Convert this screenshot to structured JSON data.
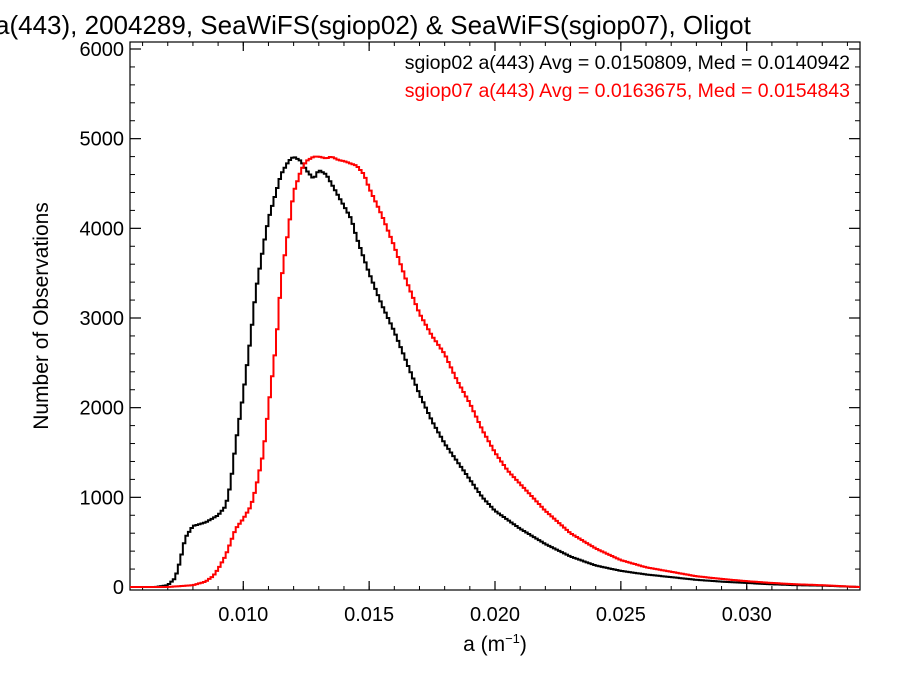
{
  "chart_data": {
    "type": "line",
    "title": "a(443), 2004289, SeaWiFS(sgiop02) & SeaWiFS(sgiop07), Oligot",
    "xlabel_base": "a (m",
    "xlabel_sup": "−1",
    "xlabel_close": ")",
    "ylabel": "Number of Observations",
    "xlim": [
      0.0055,
      0.0345
    ],
    "ylim": [
      0,
      6000
    ],
    "x_ticks": [
      0.01,
      0.015,
      0.02,
      0.025,
      0.03
    ],
    "x_tick_labels": [
      "0.010",
      "0.015",
      "0.020",
      "0.025",
      "0.030"
    ],
    "y_ticks": [
      0,
      1000,
      2000,
      3000,
      4000,
      5000,
      6000
    ],
    "y_tick_labels": [
      "0",
      "1000",
      "2000",
      "3000",
      "4000",
      "5000",
      "6000"
    ],
    "grid": false,
    "legend_position": "top-right",
    "series": [
      {
        "name": "sgiop02 a(443) Avg = 0.0150809, Med = 0.0140942",
        "color": "#000000",
        "x": [
          0.0055,
          0.0065,
          0.007,
          0.0073,
          0.0075,
          0.0077,
          0.008,
          0.0085,
          0.009,
          0.0093,
          0.0095,
          0.0097,
          0.01,
          0.0103,
          0.0105,
          0.0108,
          0.011,
          0.0113,
          0.0115,
          0.0118,
          0.012,
          0.0123,
          0.0125,
          0.0128,
          0.013,
          0.0133,
          0.0135,
          0.0138,
          0.014,
          0.0143,
          0.0145,
          0.015,
          0.0155,
          0.016,
          0.0165,
          0.017,
          0.0175,
          0.018,
          0.0185,
          0.019,
          0.0195,
          0.02,
          0.021,
          0.022,
          0.023,
          0.024,
          0.025,
          0.026,
          0.027,
          0.028,
          0.029,
          0.03,
          0.031,
          0.032,
          0.033,
          0.0345
        ],
        "y": [
          0,
          0,
          20,
          100,
          300,
          550,
          680,
          720,
          800,
          900,
          1150,
          1600,
          2150,
          2800,
          3300,
          3800,
          4100,
          4400,
          4600,
          4750,
          4800,
          4750,
          4650,
          4550,
          4650,
          4600,
          4500,
          4350,
          4250,
          4100,
          3900,
          3500,
          3150,
          2850,
          2500,
          2150,
          1850,
          1600,
          1400,
          1200,
          1000,
          850,
          650,
          480,
          340,
          240,
          180,
          140,
          110,
          80,
          60,
          45,
          30,
          20,
          15,
          0
        ]
      },
      {
        "name": "sgiop07 a(443) Avg = 0.0163675, Med = 0.0154843",
        "color": "#ff0000",
        "x": [
          0.0055,
          0.007,
          0.008,
          0.0085,
          0.0088,
          0.009,
          0.0093,
          0.0095,
          0.0097,
          0.01,
          0.0103,
          0.0105,
          0.0108,
          0.011,
          0.0113,
          0.0115,
          0.0118,
          0.012,
          0.0123,
          0.0125,
          0.0128,
          0.013,
          0.0133,
          0.0135,
          0.0138,
          0.014,
          0.0143,
          0.0145,
          0.0148,
          0.015,
          0.0155,
          0.016,
          0.0165,
          0.017,
          0.0175,
          0.018,
          0.0185,
          0.019,
          0.0195,
          0.02,
          0.0205,
          0.021,
          0.022,
          0.023,
          0.024,
          0.025,
          0.026,
          0.027,
          0.028,
          0.029,
          0.03,
          0.031,
          0.032,
          0.033,
          0.0345
        ],
        "y": [
          0,
          0,
          20,
          60,
          120,
          200,
          350,
          500,
          650,
          760,
          900,
          1100,
          1500,
          2000,
          2700,
          3400,
          4000,
          4400,
          4650,
          4750,
          4800,
          4800,
          4780,
          4800,
          4760,
          4750,
          4720,
          4700,
          4600,
          4450,
          4150,
          3800,
          3400,
          3050,
          2800,
          2600,
          2300,
          2050,
          1750,
          1500,
          1300,
          1150,
          850,
          600,
          430,
          300,
          220,
          170,
          120,
          90,
          65,
          45,
          30,
          20,
          0
        ]
      }
    ]
  }
}
